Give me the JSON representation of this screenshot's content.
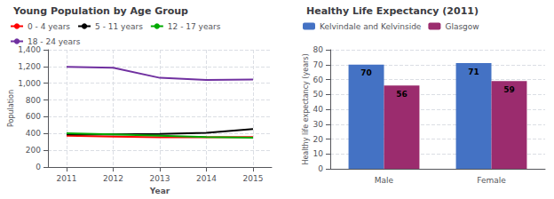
{
  "chart_data": [
    {
      "type": "line",
      "title": "Young Population by Age Group",
      "x_label": "Year",
      "y_label": "Population",
      "x": [
        2011,
        2012,
        2013,
        2014,
        2015
      ],
      "series": [
        {
          "name": "0 - 4 years",
          "color": "#ff0000",
          "values": [
            375,
            365,
            355,
            355,
            360
          ]
        },
        {
          "name": "5 - 11 years",
          "color": "#000000",
          "values": [
            390,
            390,
            395,
            410,
            455
          ]
        },
        {
          "name": "12 - 17 years",
          "color": "#00aa00",
          "values": [
            405,
            390,
            375,
            360,
            350
          ]
        },
        {
          "name": "18 - 24 years",
          "color": "#7030a0",
          "values": [
            1195,
            1185,
            1065,
            1040,
            1045
          ]
        }
      ],
      "xlim": [
        2010.6,
        2015.4
      ],
      "xticks": [
        2011,
        2012,
        2013,
        2014,
        2015
      ],
      "ylim": [
        0,
        1400
      ],
      "yticks": [
        0,
        200,
        400,
        600,
        800,
        {
          "value": 1000,
          "label": "1,000"
        },
        {
          "value": 1200,
          "label": "1,200"
        },
        {
          "value": 1400,
          "label": "1,400"
        }
      ],
      "grid": true,
      "legend": "top"
    },
    {
      "type": "bar",
      "title": "Healthy Life Expectancy (2011)",
      "y_label": "Healthy life expectancy (years)",
      "categories": [
        "Male",
        "Female"
      ],
      "series": [
        {
          "name": "Kelvindale and Kelvinside",
          "color": "#4472c4",
          "values": [
            70,
            71
          ]
        },
        {
          "name": "Glasgow",
          "color": "#9b2c6e",
          "values": [
            56,
            59
          ]
        }
      ],
      "ylim": [
        0,
        80
      ],
      "yticks": [
        0,
        10,
        20,
        30,
        40,
        50,
        60,
        70,
        80
      ],
      "grid": true,
      "legend": "top",
      "data_labels": true
    }
  ]
}
